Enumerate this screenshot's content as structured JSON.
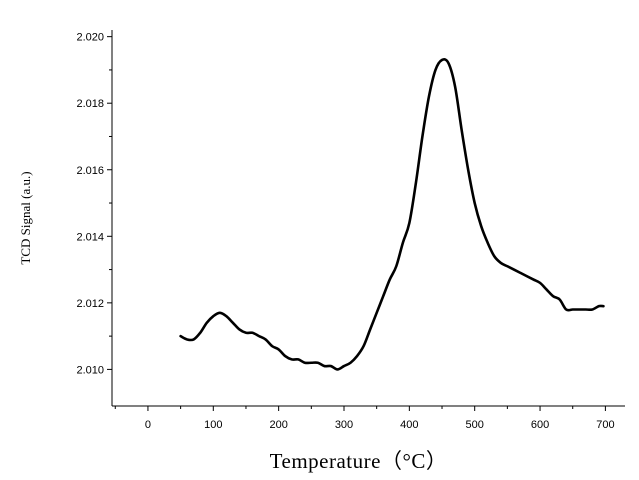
{
  "chart_data": {
    "type": "line",
    "title": "",
    "xlabel": "Temperature（°C）",
    "ylabel": "TCD Signal (a.u.)",
    "xlim": [
      -55,
      730
    ],
    "ylim": [
      2.0089,
      2.0202
    ],
    "x_ticks": [
      0,
      100,
      200,
      300,
      400,
      500,
      600,
      700
    ],
    "x_tick_labels": [
      "0",
      "100",
      "200",
      "300",
      "400",
      "500",
      "600",
      "700"
    ],
    "y_ticks": [
      2.01,
      2.012,
      2.014,
      2.016,
      2.018,
      2.02
    ],
    "y_tick_labels": [
      "2.010",
      "2.012",
      "2.014",
      "2.016",
      "2.018",
      "2.020"
    ],
    "grid": false,
    "legend": "none",
    "line_color": "#000000",
    "series": [
      {
        "x": [
          50,
          60,
          70,
          80,
          90,
          100,
          110,
          120,
          130,
          140,
          150,
          160,
          170,
          180,
          190,
          200,
          210,
          220,
          230,
          240,
          250,
          260,
          270,
          280,
          290,
          300,
          310,
          320,
          330,
          340,
          350,
          360,
          370,
          380,
          390,
          400,
          410,
          420,
          430,
          440,
          450,
          460,
          470,
          480,
          490,
          500,
          510,
          520,
          530,
          540,
          550,
          560,
          570,
          580,
          590,
          600,
          610,
          620,
          630,
          640,
          650,
          660,
          670,
          680,
          690,
          697
        ],
        "y": [
          2.011,
          2.0109,
          2.0109,
          2.0111,
          2.0114,
          2.0116,
          2.0117,
          2.0116,
          2.0114,
          2.0112,
          2.0111,
          2.0111,
          2.011,
          2.0109,
          2.0107,
          2.0106,
          2.0104,
          2.0103,
          2.0103,
          2.0102,
          2.0102,
          2.0102,
          2.0101,
          2.0101,
          2.01,
          2.0101,
          2.0102,
          2.0104,
          2.0107,
          2.0112,
          2.0117,
          2.0122,
          2.0127,
          2.0131,
          2.0138,
          2.0144,
          2.0156,
          2.017,
          2.0182,
          2.019,
          2.0193,
          2.0192,
          2.0185,
          2.0172,
          2.016,
          2.015,
          2.0143,
          2.0138,
          2.0134,
          2.0132,
          2.0131,
          2.013,
          2.0129,
          2.0128,
          2.0127,
          2.0126,
          2.0124,
          2.0122,
          2.0121,
          2.0118,
          2.0118,
          2.0118,
          2.0118,
          2.0118,
          2.0119,
          2.0119
        ]
      }
    ]
  }
}
